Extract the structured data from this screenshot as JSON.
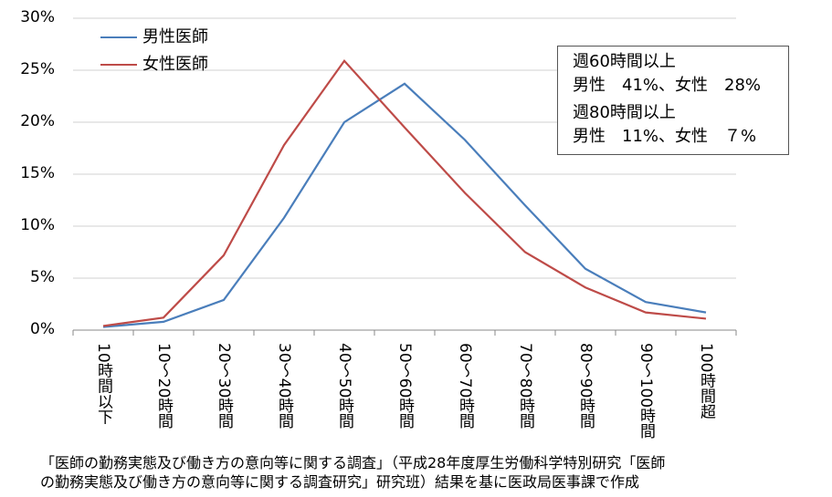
{
  "chart_data": {
    "type": "line",
    "categories": [
      "10時間以下",
      "10～20時間",
      "20～30時間",
      "30～40時間",
      "40～50時間",
      "50～60時間",
      "60～70時間",
      "70～80時間",
      "80～90時間",
      "90～100時間",
      "100時間超"
    ],
    "series": [
      {
        "name": "男性医師",
        "color": "#4a7ebb",
        "values": [
          0.3,
          0.8,
          2.9,
          10.8,
          20.0,
          23.7,
          18.3,
          12.0,
          5.9,
          2.7,
          1.7
        ]
      },
      {
        "name": "女性医師",
        "color": "#be4b48",
        "values": [
          0.4,
          1.2,
          7.2,
          17.8,
          25.9,
          19.5,
          13.2,
          7.5,
          4.1,
          1.7,
          1.1
        ]
      }
    ],
    "ylim": [
      0,
      30
    ],
    "yticks": [
      "0%",
      "5%",
      "10%",
      "15%",
      "20%",
      "25%",
      "30%"
    ],
    "grid": true,
    "legend": "top-left",
    "annotation": {
      "line1": "週60時間以上",
      "line2": "男性　41%、女性　28%",
      "line3": "週80時間以上",
      "line4": "男性　11%、女性　７%"
    }
  },
  "caption": {
    "line1": "「医師の勤務実態及び働き方の意向等に関する調査」（平成28年度厚生労働科学特別研究「医師",
    "line2": "の勤務実態及び働き方の意向等に関する調査研究」研究班）結果を基に医政局医事課で作成"
  }
}
